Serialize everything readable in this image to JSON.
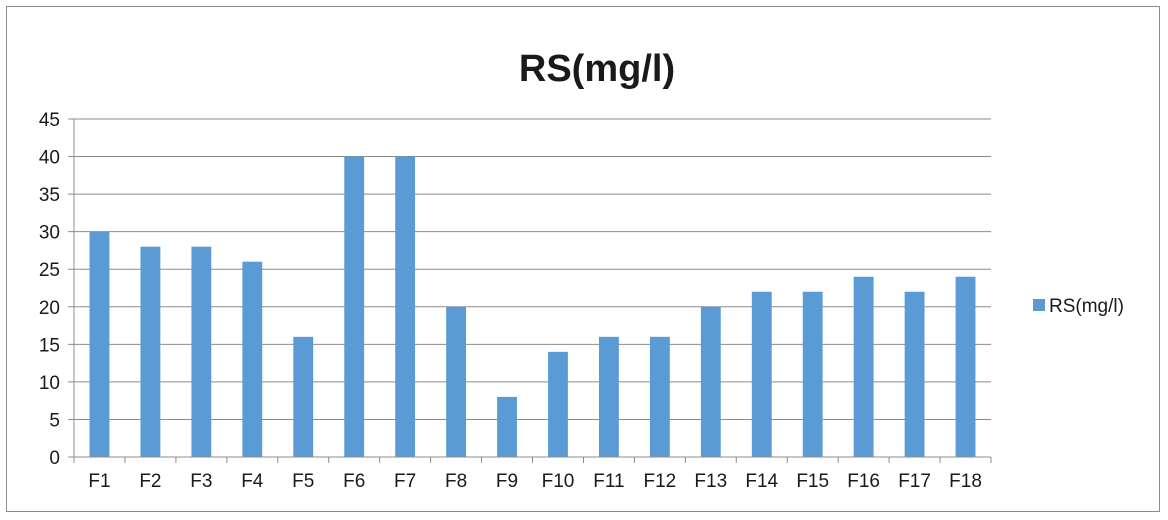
{
  "chart_data": {
    "type": "bar",
    "title": "RS(mg/l)",
    "xlabel": "",
    "ylabel": "",
    "categories": [
      "F1",
      "F2",
      "F3",
      "F4",
      "F5",
      "F6",
      "F7",
      "F8",
      "F9",
      "F10",
      "F11",
      "F12",
      "F13",
      "F14",
      "F15",
      "F16",
      "F17",
      "F18"
    ],
    "series": [
      {
        "name": "RS(mg/l)",
        "values": [
          30,
          28,
          28,
          26,
          16,
          40,
          40,
          20,
          8,
          14,
          16,
          16,
          20,
          22,
          22,
          24,
          22,
          24
        ]
      }
    ],
    "ylim": [
      0,
      45
    ],
    "yticks": [
      0,
      5,
      10,
      15,
      20,
      25,
      30,
      35,
      40,
      45
    ],
    "grid": true,
    "legend_position": "right",
    "colors": {
      "bar": "#5B9BD5",
      "grid": "#8c8c8c",
      "axis": "#8c8c8c"
    }
  }
}
